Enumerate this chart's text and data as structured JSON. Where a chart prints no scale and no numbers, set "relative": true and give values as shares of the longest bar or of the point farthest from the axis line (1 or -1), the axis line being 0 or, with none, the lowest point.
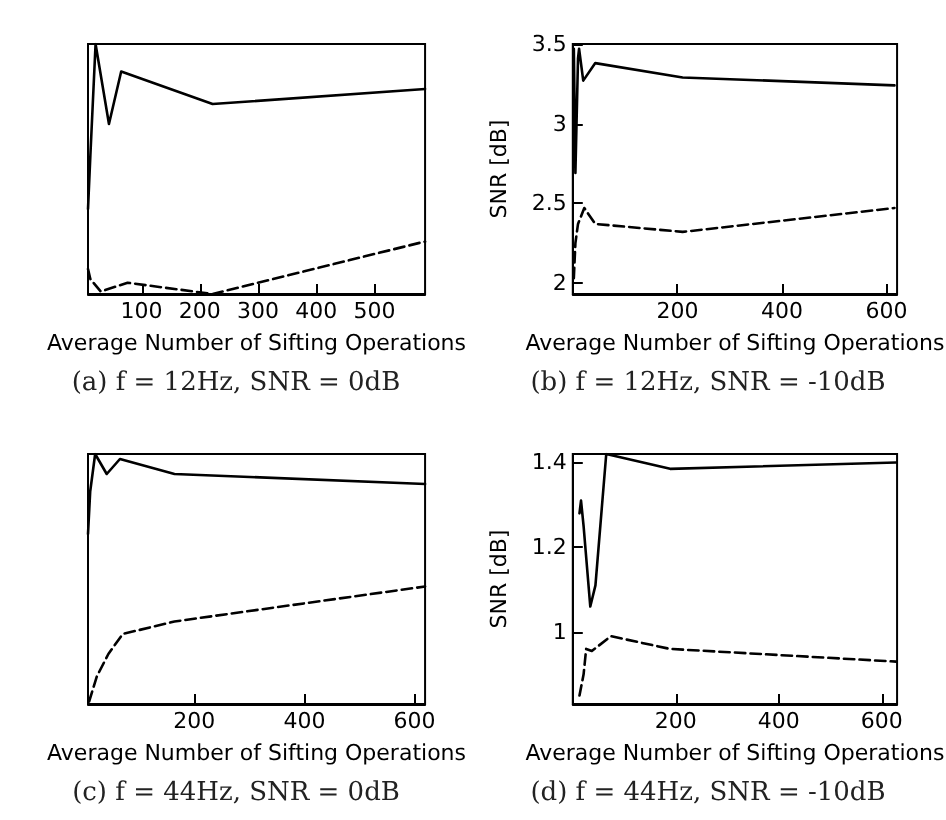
{
  "chart_data": [
    {
      "type": "line",
      "title": "(a) f = 12Hz, SNR = 0dB",
      "xlabel": "Average Number of Sifting Operations",
      "relative": true,
      "xlim": [
        8,
        587
      ],
      "xticks": [
        100,
        200,
        300,
        400,
        500
      ],
      "grid": false,
      "marker": "none",
      "series": [
        {
          "color": "#000000",
          "line_style": "solid",
          "x": [
            8,
            12,
            21,
            44,
            65,
            222,
            587
          ],
          "values": [
            0.34,
            0.55,
            1.0,
            0.68,
            0.89,
            0.76,
            0.82
          ]
        },
        {
          "color": "#000000",
          "line_style": "dashed",
          "x": [
            8,
            12,
            30,
            76,
            222,
            587
          ],
          "values": [
            0.1,
            0.06,
            0.01,
            0.045,
            0,
            0.21
          ]
        }
      ]
    },
    {
      "type": "line",
      "title": "(b) f = 12Hz, SNR = -10dB",
      "xlabel": "Average Number of Sifting Operations",
      "ylabel": "SNR [dB]",
      "xlim": [
        0,
        620
      ],
      "xticks": [
        200,
        400,
        600
      ],
      "ylim": [
        1.93,
        3.5
      ],
      "yticks": [
        2,
        2.5,
        3,
        3.5
      ],
      "grid": false,
      "marker": "none",
      "series": [
        {
          "color": "#000000",
          "line_style": "solid",
          "x": [
            2,
            5,
            10,
            12,
            20,
            43,
            210,
            615
          ],
          "values": [
            3.47,
            2.69,
            3.41,
            3.47,
            3.27,
            3.38,
            3.29,
            3.24
          ]
        },
        {
          "color": "#000000",
          "line_style": "dashed",
          "x": [
            2,
            5,
            10,
            22,
            43,
            210,
            615
          ],
          "values": [
            2.03,
            2.25,
            2.37,
            2.47,
            2.37,
            2.32,
            2.47
          ]
        }
      ]
    },
    {
      "type": "line",
      "title": "(c) f = 44Hz, SNR = 0dB",
      "xlabel": "Average Number of Sifting Operations",
      "relative": true,
      "xlim": [
        7,
        619
      ],
      "xticks": [
        200,
        400,
        600
      ],
      "grid": false,
      "marker": "none",
      "series": [
        {
          "color": "#000000",
          "line_style": "solid",
          "x": [
            7,
            11,
            20,
            41,
            65,
            164,
            619
          ],
          "values": [
            0.68,
            0.85,
            1.0,
            0.92,
            0.98,
            0.92,
            0.88
          ]
        },
        {
          "color": "#000000",
          "line_style": "dashed",
          "x": [
            9,
            23,
            44,
            70,
            164,
            619
          ],
          "values": [
            0.01,
            0.11,
            0.2,
            0.28,
            0.33,
            0.47
          ]
        }
      ]
    },
    {
      "type": "line",
      "title": "(d) f = 44Hz, SNR = -10dB",
      "xlabel": "Average Number of Sifting Operations",
      "ylabel": "SNR [dB]",
      "xlim": [
        0,
        630
      ],
      "xticks": [
        200,
        400,
        600
      ],
      "ylim": [
        0.83,
        1.42
      ],
      "yticks": [
        1,
        1.2,
        1.4
      ],
      "grid": false,
      "marker": "none",
      "series": [
        {
          "color": "#000000",
          "line_style": "solid",
          "x": [
            13,
            16,
            21,
            34,
            44,
            65,
            189,
            628
          ],
          "values": [
            1.28,
            1.31,
            1.25,
            1.06,
            1.11,
            1.42,
            1.385,
            1.4
          ]
        },
        {
          "color": "#000000",
          "line_style": "dashed",
          "x": [
            13,
            21,
            26,
            37,
            74,
            189,
            628
          ],
          "values": [
            0.85,
            0.9,
            0.96,
            0.955,
            0.99,
            0.96,
            0.93
          ]
        }
      ]
    }
  ]
}
